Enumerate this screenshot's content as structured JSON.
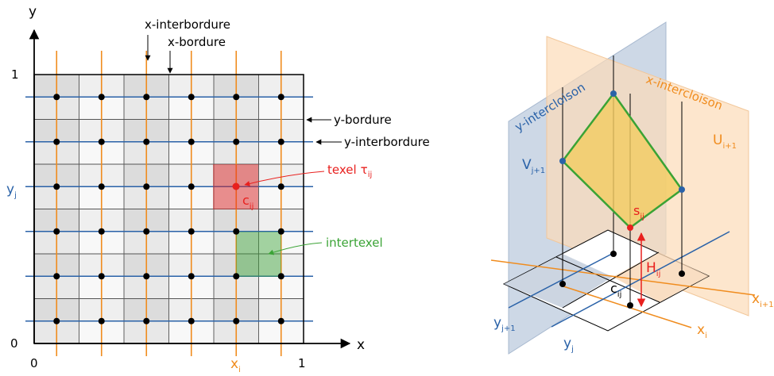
{
  "left": {
    "axis_y": "y",
    "axis_x": "x",
    "tick_1_y": "1",
    "tick_0": "0",
    "tick_0_x": "0",
    "tick_1_x": "1",
    "x_interbordure": "x-interbordure",
    "x_bordure": "x-bordure",
    "y_bordure": "y-bordure",
    "y_interbordure": "y-interbordure",
    "texel_label": "texel",
    "texel_symbol": "τ",
    "texel_sub": "ij",
    "intertexel_label": "intertexel",
    "xi": {
      "base": "x",
      "sub": "i"
    },
    "yj": {
      "base": "y",
      "sub": "j"
    },
    "cij": {
      "base": "c",
      "sub": "ij"
    }
  },
  "right": {
    "y_intercloison": "y-intercloison",
    "x_intercloison": "x-intercloison",
    "U": {
      "base": "U",
      "sub": "i+1"
    },
    "V": {
      "base": "V",
      "sub": "j+1"
    },
    "s": {
      "base": "s",
      "sub": "ij"
    },
    "H": {
      "base": "H",
      "sub": "ij"
    },
    "c": {
      "base": "c",
      "sub": "ij"
    },
    "xi1": {
      "base": "x",
      "sub": "i+1"
    },
    "xi": {
      "base": "x",
      "sub": "i"
    },
    "yj1": {
      "base": "y",
      "sub": "j+1"
    },
    "yj": {
      "base": "y",
      "sub": "j"
    }
  },
  "colors": {
    "blue": "#2a62a8",
    "orange": "#f08c1e",
    "red": "#e8201e",
    "green": "#3aa335",
    "cell_gray": "#e0e0e0",
    "cell_light": "#f4f4f4",
    "plane_blue": "#bccbdd",
    "plane_orange": "#fcdcb8",
    "diamond_fill": "#f2cc60"
  }
}
